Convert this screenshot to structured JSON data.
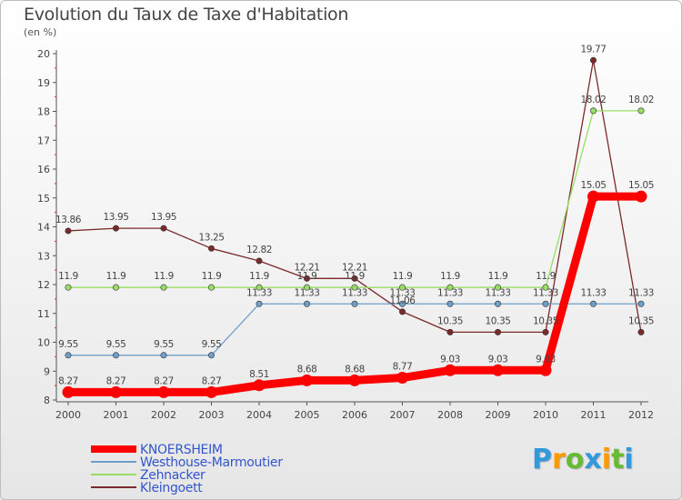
{
  "chart_data": {
    "type": "line",
    "title": "Evolution du Taux de Taxe d'Habitation",
    "subtitle": "(en %)",
    "x": [
      "2000",
      "2001",
      "2002",
      "2003",
      "2004",
      "2005",
      "2006",
      "2007",
      "2008",
      "2009",
      "2010",
      "2011",
      "2012"
    ],
    "ylim": [
      8,
      20
    ],
    "yticks": [
      8,
      9,
      10,
      11,
      12,
      13,
      14,
      15,
      16,
      17,
      18,
      19,
      20
    ],
    "grid": false,
    "legend_position": "bottom-left",
    "series": [
      {
        "name": "KNOERSHEIM",
        "color": "#ff0000",
        "values": [
          8.27,
          8.27,
          8.27,
          8.27,
          8.51,
          8.68,
          8.68,
          8.77,
          9.03,
          9.03,
          9.03,
          15.05,
          15.05
        ],
        "labels": [
          "8.27",
          "8.27",
          "8.27",
          "8.27",
          "8.51",
          "8.68",
          "8.68",
          "8.77",
          "9.03",
          "9.03",
          "9.03",
          "15.05",
          "15.05"
        ]
      },
      {
        "name": "Westhouse-Marmoutier",
        "color": "#6f9fc8",
        "values": [
          9.55,
          9.55,
          9.55,
          9.55,
          11.33,
          11.33,
          11.33,
          11.33,
          11.33,
          11.33,
          11.33,
          11.33,
          11.33
        ],
        "labels": [
          "9.55",
          "9.55",
          "9.55",
          "9.55",
          "11.33",
          "11.33",
          "11.33",
          "11.33",
          "11.33",
          "11.33",
          "11.33",
          "11.33",
          "11.33"
        ]
      },
      {
        "name": "Zehnacker",
        "color": "#99dd66",
        "values": [
          11.9,
          11.9,
          11.9,
          11.9,
          11.9,
          11.9,
          11.9,
          11.9,
          11.9,
          11.9,
          11.9,
          18.02,
          18.02
        ],
        "labels": [
          "11.9",
          "11.9",
          "11.9",
          "11.9",
          "11.9",
          "11.9",
          "11.9",
          "11.9",
          "11.9",
          "11.9",
          "11.9",
          "18.02",
          "18.02"
        ]
      },
      {
        "name": "Kleingoett",
        "color": "#7a2a2a",
        "values": [
          13.86,
          13.95,
          13.95,
          13.25,
          12.82,
          12.21,
          12.21,
          11.06,
          10.35,
          10.35,
          10.35,
          19.77,
          10.35
        ],
        "labels": [
          "13.86",
          "13.95",
          "13.95",
          "13.25",
          "12.82",
          "12.21",
          "12.21",
          "11.06",
          "10.35",
          "10.35",
          "10.35",
          "19.77",
          "10.35"
        ]
      }
    ]
  },
  "logo": {
    "letters": [
      "P",
      "r",
      "o",
      "x",
      "i",
      "t",
      "i"
    ],
    "colors": [
      "#3399dd",
      "#ff9900",
      "#66bb33",
      "#3399dd",
      "#ff9900",
      "#66bb33",
      "#3399dd"
    ]
  }
}
